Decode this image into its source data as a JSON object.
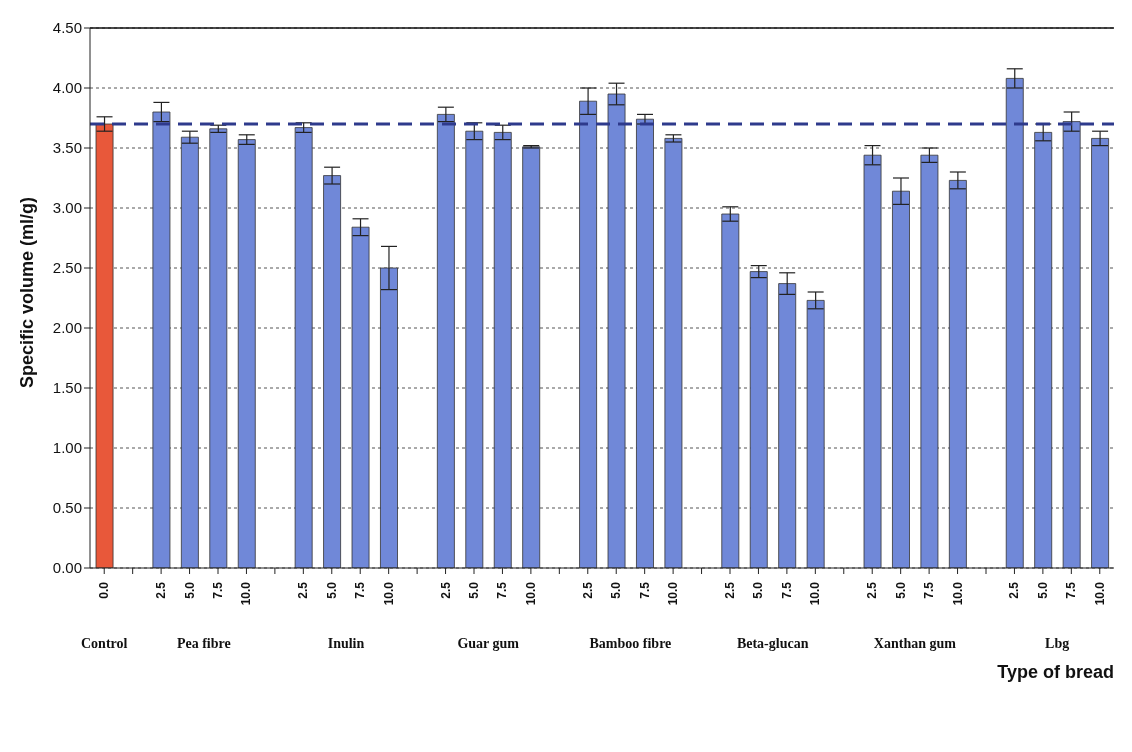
{
  "chart_data": {
    "type": "bar",
    "xlabel": "Type of bread",
    "ylabel": "Specific volume (ml/g)",
    "categories": [
      "0.0",
      null,
      "2.5",
      "5.0",
      "7.5",
      "10.0",
      null,
      "2.5",
      "5.0",
      "7.5",
      "10.0",
      null,
      "2.5",
      "5.0",
      "7.5",
      "10.0",
      null,
      "2.5",
      "5.0",
      "7.5",
      "10.0",
      null,
      "2.5",
      "5.0",
      "7.5",
      "10.0",
      null,
      "2.5",
      "5.0",
      "7.5",
      "10.0",
      null,
      "2.5",
      "5.0",
      "7.5",
      "10.0"
    ],
    "values": [
      3.7,
      null,
      3.8,
      3.59,
      3.66,
      3.57,
      null,
      3.67,
      3.27,
      2.84,
      2.5,
      null,
      3.78,
      3.64,
      3.63,
      3.51,
      null,
      3.89,
      3.95,
      3.74,
      3.58,
      null,
      2.95,
      2.47,
      2.37,
      2.23,
      null,
      3.44,
      3.14,
      3.44,
      3.23,
      null,
      4.08,
      3.63,
      3.72,
      3.58
    ],
    "errors": [
      0.06,
      null,
      0.08,
      0.05,
      0.03,
      0.04,
      null,
      0.04,
      0.07,
      0.07,
      0.18,
      null,
      0.06,
      0.07,
      0.06,
      0.01,
      null,
      0.11,
      0.09,
      0.04,
      0.03,
      null,
      0.06,
      0.05,
      0.09,
      0.07,
      null,
      0.08,
      0.11,
      0.06,
      0.07,
      null,
      0.08,
      0.07,
      0.08,
      0.06
    ],
    "colors": [
      "#e8583a",
      null,
      "#7088d8",
      "#7088d8",
      "#7088d8",
      "#7088d8",
      null,
      "#7088d8",
      "#7088d8",
      "#7088d8",
      "#7088d8",
      null,
      "#7088d8",
      "#7088d8",
      "#7088d8",
      "#7088d8",
      null,
      "#7088d8",
      "#7088d8",
      "#7088d8",
      "#7088d8",
      null,
      "#7088d8",
      "#7088d8",
      "#7088d8",
      "#7088d8",
      null,
      "#7088d8",
      "#7088d8",
      "#7088d8",
      "#7088d8",
      null,
      "#7088d8",
      "#7088d8",
      "#7088d8",
      "#7088d8"
    ],
    "ylim": [
      0,
      4.5
    ],
    "yticks": [
      {
        "value": 0,
        "label": "0.00"
      },
      {
        "value": 0.5,
        "label": "0.50"
      },
      {
        "value": 1,
        "label": "1.00"
      },
      {
        "value": 1.5,
        "label": "1.50"
      },
      {
        "value": 2,
        "label": "2.00"
      },
      {
        "value": 2.5,
        "label": "2.50"
      },
      {
        "value": 3,
        "label": "3.00"
      },
      {
        "value": 3.5,
        "label": "3.50"
      },
      {
        "value": 4,
        "label": "4.00"
      },
      {
        "value": 4.5,
        "label": "4.50"
      }
    ],
    "grid": "y",
    "legend": false,
    "ref_lines": [
      {
        "axis": "y",
        "value": 3.7,
        "color": "#2e3a8c",
        "line_style": "dashed"
      }
    ],
    "annotations": [
      "Control",
      "Pea fibre",
      "Inulin",
      "Guar gum",
      "Bamboo fibre",
      "Beta-glucan",
      "Xanthan gum",
      "Lbg"
    ]
  }
}
